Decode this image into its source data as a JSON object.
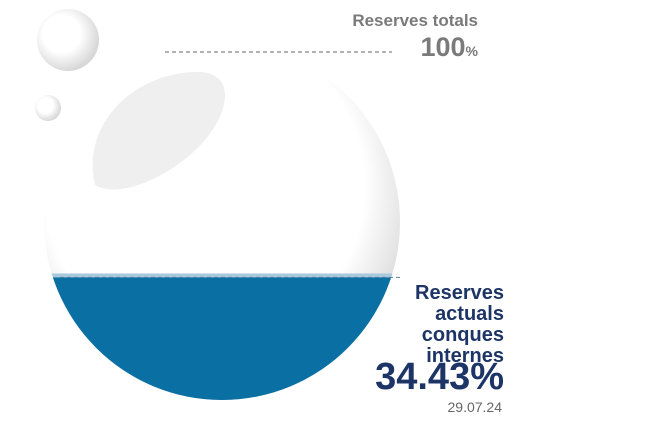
{
  "chart_data": {
    "type": "fill-level",
    "total_label": "Reserves totals",
    "ylim": [
      0,
      100
    ],
    "unit": "%",
    "label": "Reserves actuals conques internes",
    "value": 34.43,
    "value_label": "34.43%",
    "date": "29.07.24",
    "color": "#0a6fa3"
  }
}
